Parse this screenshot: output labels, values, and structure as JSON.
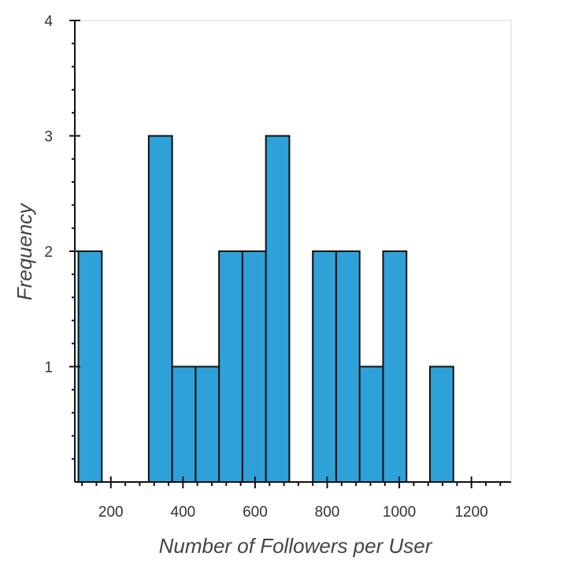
{
  "chart_data": {
    "type": "bar",
    "subtype": "histogram",
    "title": "",
    "xlabel": "Number of Followers per User",
    "ylabel": "Frequency",
    "xlim": [
      100,
      1310
    ],
    "ylim": [
      0,
      4
    ],
    "xticks": [
      200,
      400,
      600,
      800,
      1000,
      1200
    ],
    "yticks": [
      1,
      2,
      3,
      4
    ],
    "bin_width": 65,
    "bins": [
      {
        "x0": 110,
        "x1": 175,
        "value": 2
      },
      {
        "x0": 175,
        "x1": 240,
        "value": 0
      },
      {
        "x0": 240,
        "x1": 305,
        "value": 0
      },
      {
        "x0": 305,
        "x1": 370,
        "value": 3
      },
      {
        "x0": 370,
        "x1": 435,
        "value": 1
      },
      {
        "x0": 435,
        "x1": 500,
        "value": 1
      },
      {
        "x0": 500,
        "x1": 565,
        "value": 2
      },
      {
        "x0": 565,
        "x1": 630,
        "value": 2
      },
      {
        "x0": 630,
        "x1": 695,
        "value": 3
      },
      {
        "x0": 695,
        "x1": 760,
        "value": 0
      },
      {
        "x0": 760,
        "x1": 825,
        "value": 2
      },
      {
        "x0": 825,
        "x1": 890,
        "value": 2
      },
      {
        "x0": 890,
        "x1": 955,
        "value": 1
      },
      {
        "x0": 955,
        "x1": 1020,
        "value": 2
      },
      {
        "x0": 1020,
        "x1": 1085,
        "value": 0
      },
      {
        "x0": 1085,
        "x1": 1150,
        "value": 1
      },
      {
        "x0": 1150,
        "x1": 1215,
        "value": 0
      },
      {
        "x0": 1215,
        "x1": 1280,
        "value": 0
      }
    ],
    "bar_color": "#2fa1d9",
    "bar_edge_color": "#111111",
    "grid": false,
    "legend": "none"
  }
}
